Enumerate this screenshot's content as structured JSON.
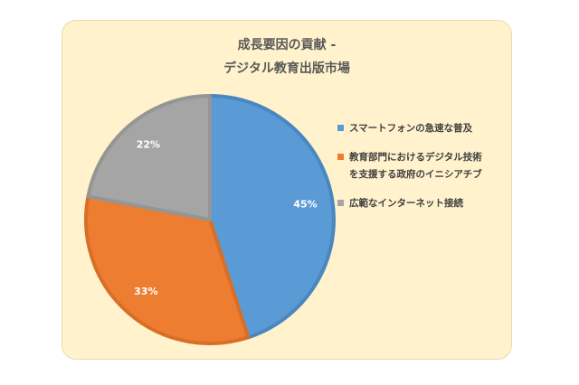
{
  "chart_data": {
    "type": "pie",
    "title_lines": [
      "成長要因の貢献 -",
      "デジタル教育出版市場"
    ],
    "categories": [
      "スマートフォンの急速な普及",
      "教育部門におけるデジタル技術を支援する政府のイニシアチブ",
      "広範なインターネット接続"
    ],
    "values": [
      45,
      33,
      22
    ],
    "value_labels": [
      "45%",
      "33%",
      "22%"
    ],
    "colors": [
      "#5b9bd5",
      "#ed7d31",
      "#a5a5a5"
    ],
    "border_colors": [
      "#4a87c0",
      "#d86f28",
      "#959595"
    ],
    "legend_position": "right"
  }
}
